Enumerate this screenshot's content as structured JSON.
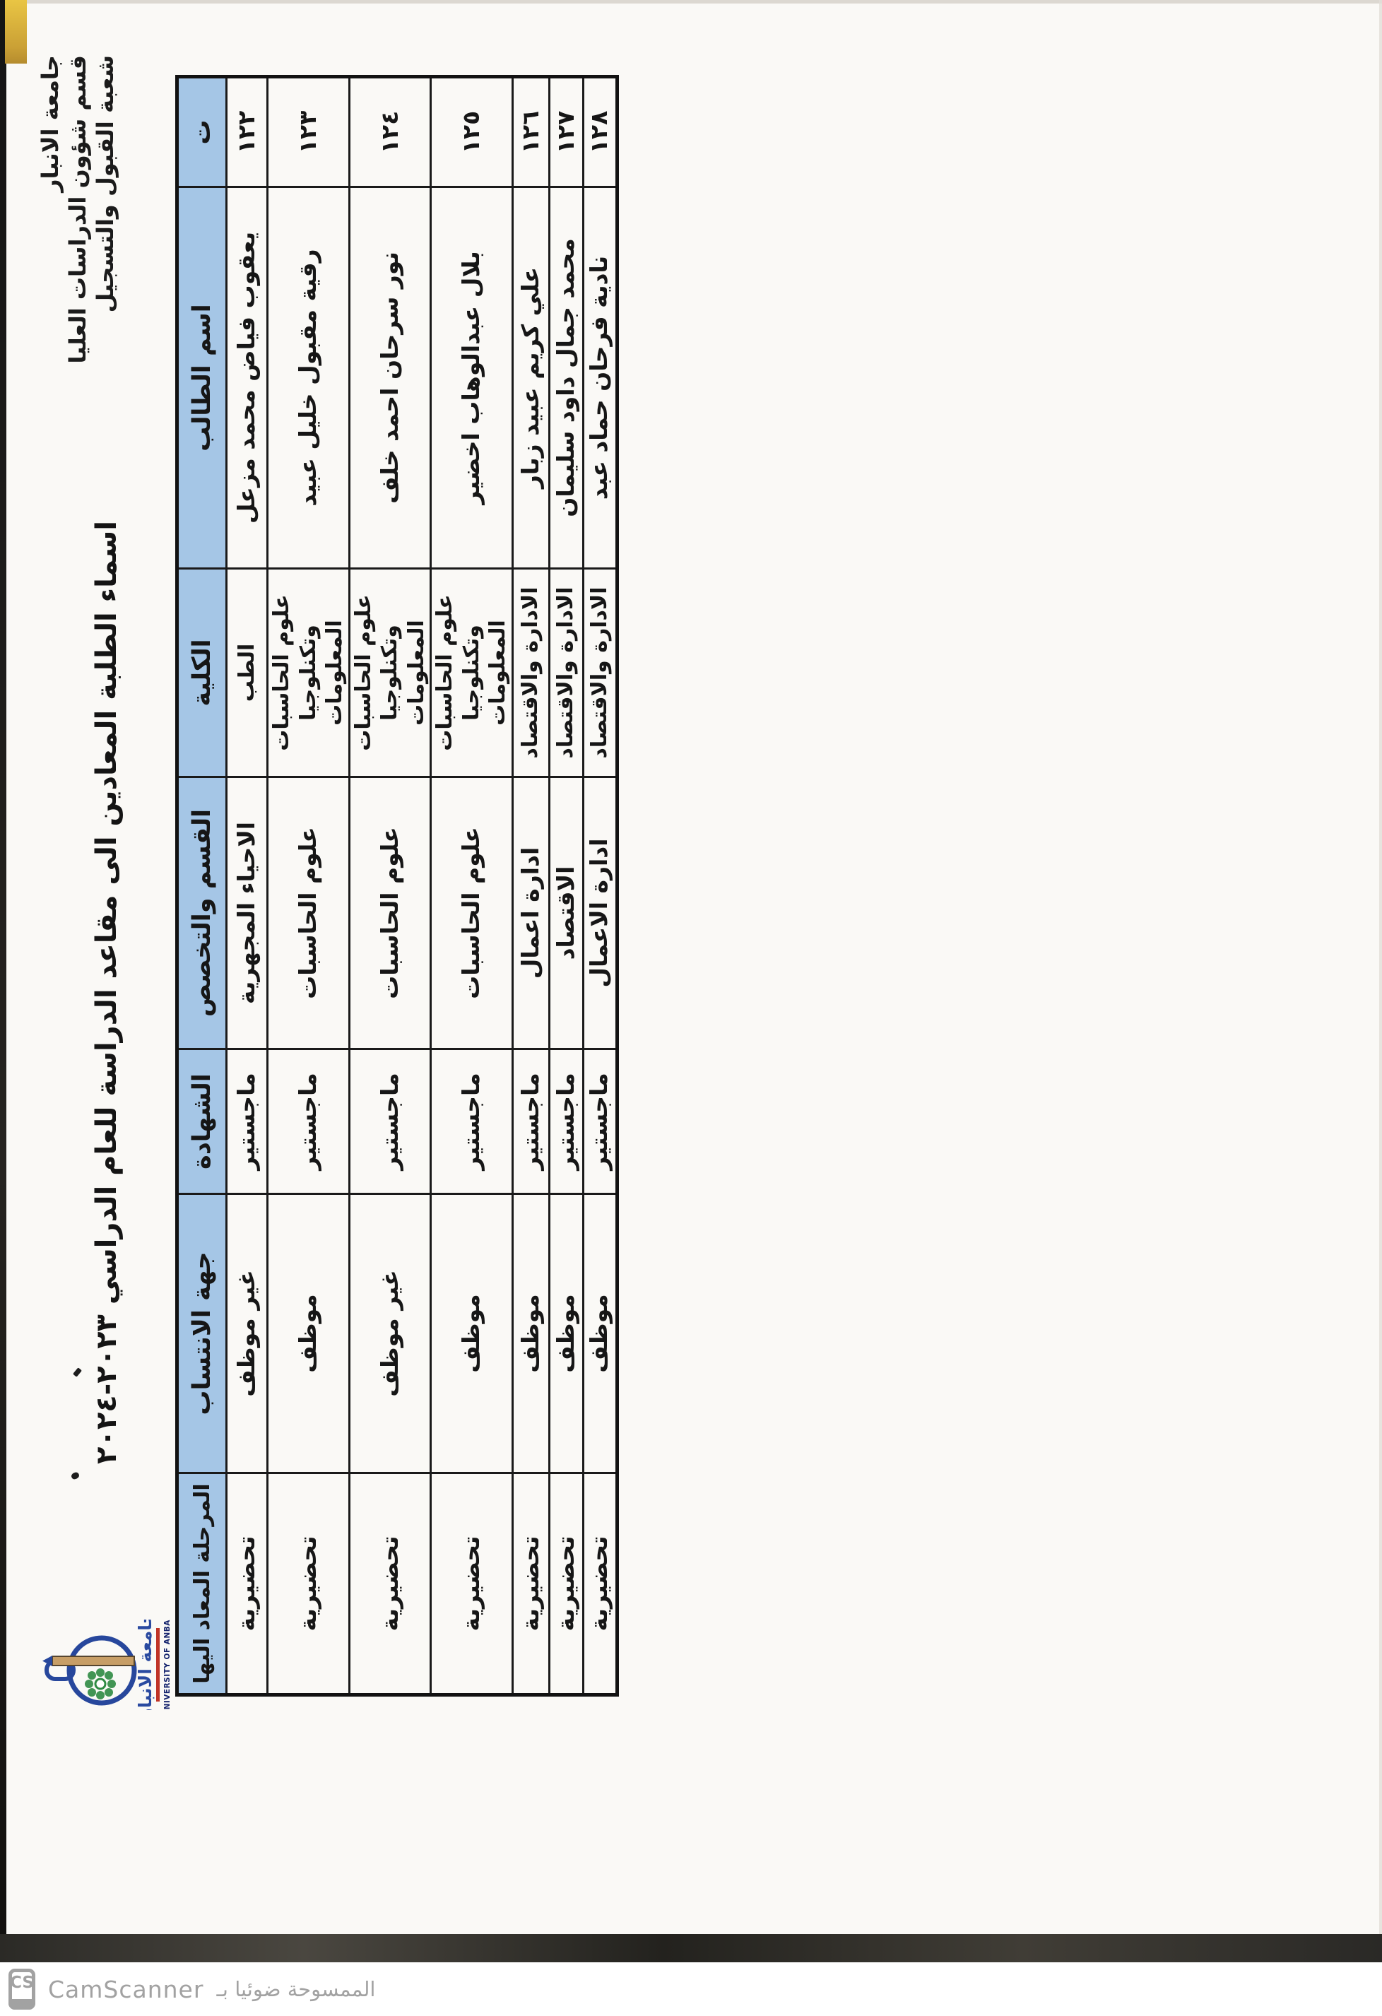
{
  "letterhead": {
    "line1": "جامعة الانبار",
    "line2": "قسم شؤون الدراسات العليا",
    "line3": "شعبة القبول والتسجيل"
  },
  "title": "اسماء الطلبة المعادين الى مقاعد الدراسة للعام الدراسي ٢٠٢٣-٢٠٢٤",
  "logo": {
    "arabic_name": "جامعة الانبار",
    "english_name": "UNIVERSITY OF ANBAR"
  },
  "table": {
    "columns": [
      {
        "key": "no",
        "label": "ت"
      },
      {
        "key": "name",
        "label": "اسم الطالب"
      },
      {
        "key": "college",
        "label": "الكلية"
      },
      {
        "key": "dept",
        "label": "القسم والتخصص"
      },
      {
        "key": "degree",
        "label": "الشهادة"
      },
      {
        "key": "affiliation",
        "label": "جهة الانتساب"
      },
      {
        "key": "stage",
        "label": "المرحلة المعاد اليها"
      }
    ],
    "rows": [
      {
        "no": "١٢٢",
        "name": "يعقوب فياض محمد مزعل",
        "college": "الطب",
        "dept": "الاحياء المجهرية",
        "degree": "ماجستير",
        "affiliation": "غير موظف",
        "stage": "تحضيرية"
      },
      {
        "no": "١٢٣",
        "name": "رقية مقبول خليل عبيد",
        "college": "علوم الحاسبات وتكنلوجيا المعلومات",
        "dept": "علوم الحاسبات",
        "degree": "ماجستير",
        "affiliation": "موظف",
        "stage": "تحضيرية"
      },
      {
        "no": "١٢٤",
        "name": "نور سرحان احمد خلف",
        "college": "علوم الحاسبات وتكنلوجيا المعلومات",
        "dept": "علوم الحاسبات",
        "degree": "ماجستير",
        "affiliation": "غير موظف",
        "stage": "تحضيرية"
      },
      {
        "no": "١٢٥",
        "name": "بلال عبدالوهاب اخضير",
        "college": "علوم الحاسبات وتكنلوجيا المعلومات",
        "dept": "علوم الحاسبات",
        "degree": "ماجستير",
        "affiliation": "موظف",
        "stage": "تحضيرية"
      },
      {
        "no": "١٢٦",
        "name": "علي كريم عبيد زبار",
        "college": "الادارة والاقتصاد",
        "dept": "ادارة اعمال",
        "degree": "ماجستير",
        "affiliation": "موظف",
        "stage": "تحضيرية"
      },
      {
        "no": "١٢٧",
        "name": "محمد جمال داود سليمان",
        "college": "الادارة والاقتصاد",
        "dept": "الاقتصاد",
        "degree": "ماجستير",
        "affiliation": "موظف",
        "stage": "تحضيرية"
      },
      {
        "no": "١٢٨",
        "name": "نادية فرحان حماد عبد",
        "college": "الادارة والاقتصاد",
        "dept": "ادارة الاعمال",
        "degree": "ماجستير",
        "affiliation": "موظف",
        "stage": "تحضيرية"
      }
    ]
  },
  "footer": {
    "badge": "CS",
    "brand": "CamScanner",
    "note": "الممسوحة ضوئيا بـ"
  },
  "colors": {
    "header_fill": "#a5c6e6",
    "ink": "#161616",
    "watermark": "#a2a2a2",
    "accent_red": "#c03427",
    "logo_blue": "#27479c",
    "logo_green": "#2f8b43",
    "logo_tan": "#c79e66"
  }
}
